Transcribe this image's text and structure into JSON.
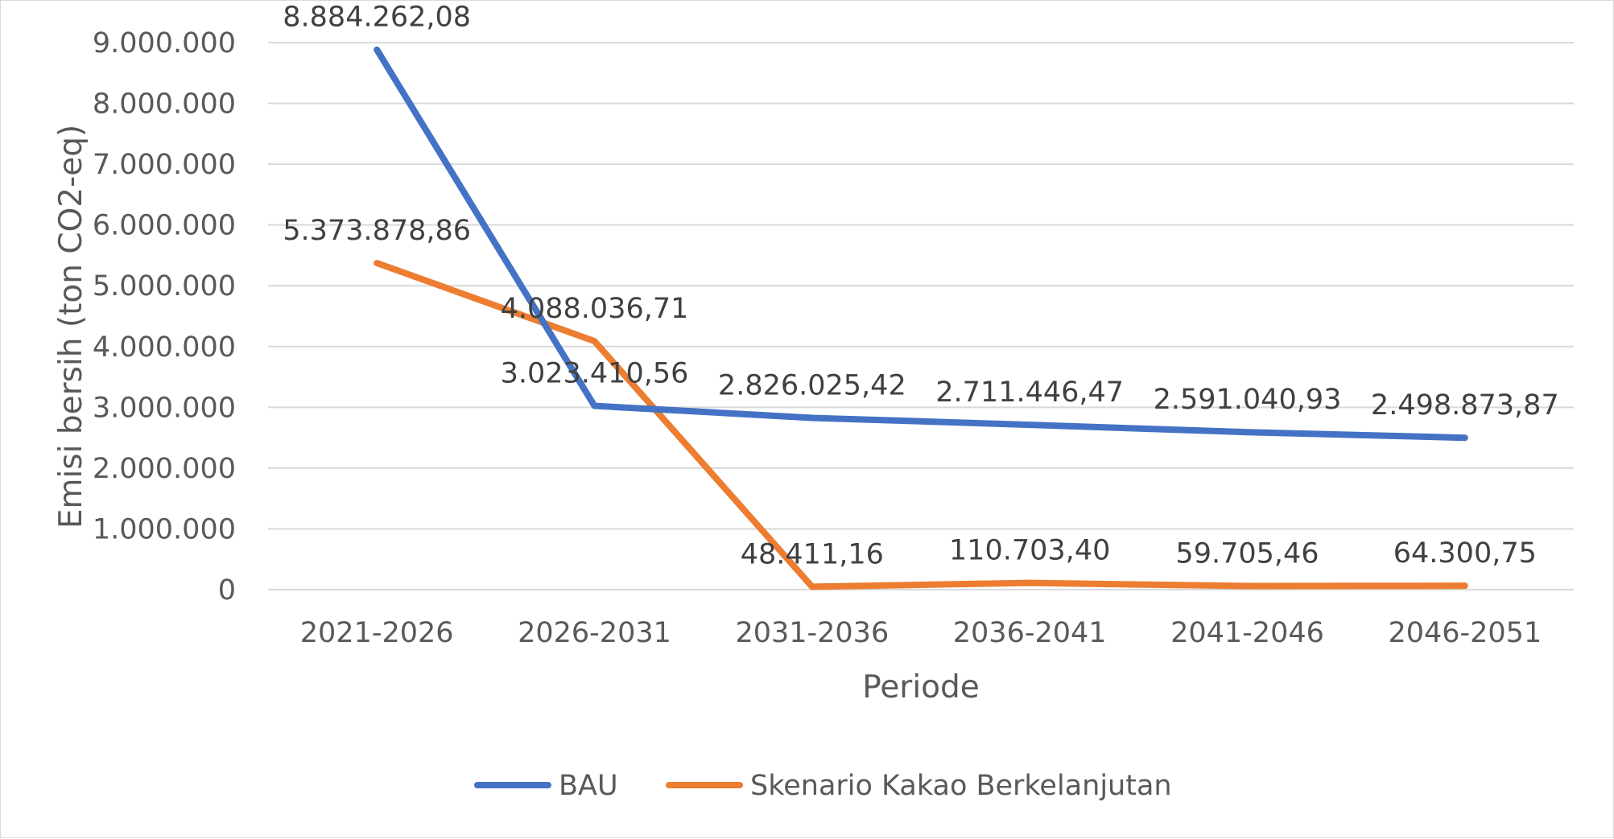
{
  "chart_data": {
    "type": "line",
    "title": "",
    "xlabel": "Periode",
    "ylabel": "Emisi bersih (ton CO2-eq)",
    "categories": [
      "2021-2026",
      "2026-2031",
      "2031-2036",
      "2036-2041",
      "2041-2046",
      "2046-2051"
    ],
    "ylim": [
      0,
      9000000
    ],
    "yticks": [
      0,
      1000000,
      2000000,
      3000000,
      4000000,
      5000000,
      6000000,
      7000000,
      8000000,
      9000000
    ],
    "ytick_labels": [
      "0",
      "1.000.000",
      "2.000.000",
      "3.000.000",
      "4.000.000",
      "5.000.000",
      "6.000.000",
      "7.000.000",
      "8.000.000",
      "9.000.000"
    ],
    "grid": true,
    "legend_position": "bottom",
    "series": [
      {
        "name": "BAU",
        "color": "#4472c4",
        "values": [
          8884262.08,
          3023410.56,
          2826025.42,
          2711446.47,
          2591040.93,
          2498873.87
        ],
        "labels": [
          "8.884.262,08",
          "3.023.410,56",
          "2.826.025,42",
          "2.711.446,47",
          "2.591.040,93",
          "2.498.873,87"
        ]
      },
      {
        "name": "Skenario Kakao Berkelanjutan",
        "color": "#ed7d31",
        "values": [
          5373878.86,
          4088036.71,
          48411.16,
          110703.4,
          59705.46,
          64300.75
        ],
        "labels": [
          "5.373.878,86",
          "4.088.036,71",
          "48.411,16",
          "110.703,40",
          "59.705,46",
          "64.300,75"
        ]
      }
    ]
  }
}
